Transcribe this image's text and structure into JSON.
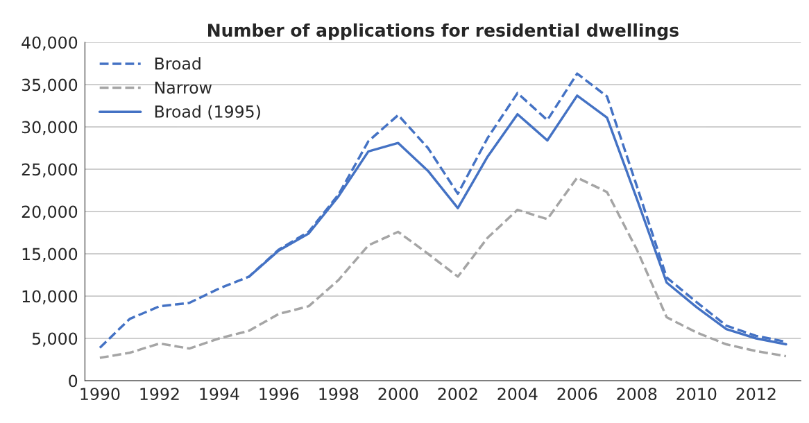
{
  "chart_data": {
    "type": "line",
    "title": "Number of applications for residential dwellings",
    "x": [
      1990,
      1991,
      1992,
      1993,
      1994,
      1995,
      1996,
      1997,
      1998,
      1999,
      2000,
      2001,
      2002,
      2003,
      2004,
      2005,
      2006,
      2007,
      2008,
      2009,
      2010,
      2011,
      2012,
      2013
    ],
    "series": [
      {
        "name": "Broad",
        "color": "#4472c4",
        "line_style": "dashed",
        "values": [
          3900,
          7300,
          8800,
          9200,
          10900,
          12300,
          15500,
          17600,
          22000,
          28300,
          31400,
          27500,
          22100,
          28700,
          34000,
          30800,
          36300,
          33600,
          23000,
          12200,
          9300,
          6500,
          5300,
          4600
        ]
      },
      {
        "name": "Narrow",
        "color": "#a5a5a5",
        "line_style": "dashed",
        "values": [
          2700,
          3300,
          4400,
          3800,
          5000,
          5900,
          7900,
          8800,
          11900,
          16000,
          17600,
          15000,
          12300,
          16900,
          20200,
          19100,
          24000,
          22300,
          15500,
          7500,
          5700,
          4300,
          3500,
          2900
        ]
      },
      {
        "name": "Broad (1995)",
        "color": "#4472c4",
        "line_style": "solid",
        "values": [
          null,
          null,
          null,
          null,
          null,
          12300,
          15400,
          17400,
          21800,
          27100,
          28100,
          24800,
          20400,
          26500,
          31500,
          28400,
          33700,
          31100,
          21500,
          11600,
          8700,
          6100,
          5000,
          4300
        ]
      }
    ],
    "xlim": [
      1989.5,
      2013.5
    ],
    "xticks": [
      1990,
      1992,
      1994,
      1996,
      1998,
      2000,
      2002,
      2004,
      2006,
      2008,
      2010,
      2012
    ],
    "ylim": [
      0,
      40000
    ],
    "yticks": [
      0,
      {
        "value": 5000,
        "label": "5,000"
      },
      {
        "value": 10000,
        "label": "10,000"
      },
      {
        "value": 15000,
        "label": "15,000"
      },
      {
        "value": 20000,
        "label": "20,000"
      },
      {
        "value": 25000,
        "label": "25,000"
      },
      {
        "value": 30000,
        "label": "30,000"
      },
      {
        "value": 35000,
        "label": "35,000"
      },
      {
        "value": 40000,
        "label": "40,000"
      }
    ],
    "grid": "y",
    "legend": "top left",
    "marker": "none"
  }
}
